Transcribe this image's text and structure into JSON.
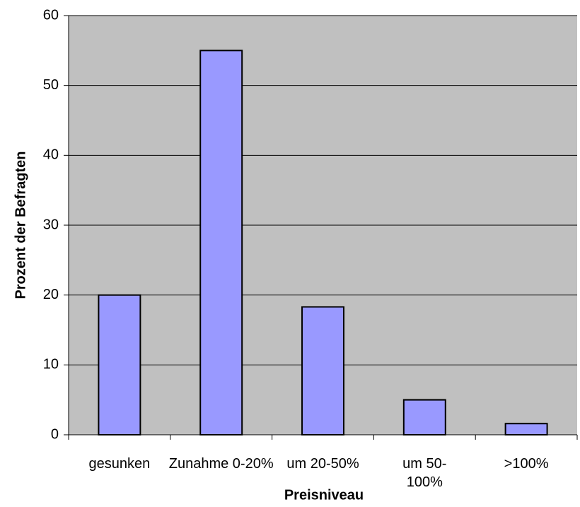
{
  "chart_data": {
    "type": "bar",
    "categories": [
      "gesunken",
      "Zunahme 0-20%",
      "um 20-50%",
      "um 50-100%",
      ">100%"
    ],
    "values": [
      20,
      55,
      18.3,
      5,
      1.6
    ],
    "color": "#9999ff",
    "ylim": [
      0,
      60
    ],
    "yticks": [
      0,
      10,
      20,
      30,
      40,
      50,
      60
    ],
    "grid": true,
    "xlabel": "Preisniveau",
    "ylabel": "Prozent der Befragten"
  }
}
